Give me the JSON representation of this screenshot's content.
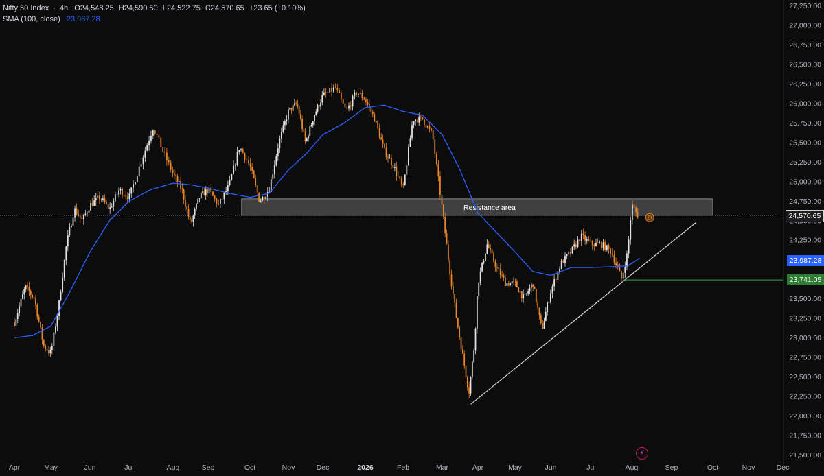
{
  "legend": {
    "symbol": "Nifty 50 Index",
    "separator": "·",
    "interval": "4h",
    "ohlc": {
      "open": "O24,548.25",
      "high": "H24,590.50",
      "low": "L24,522.75",
      "close": "C24,570.65",
      "change": "+23.65 (+0.10%)"
    },
    "sma_label": "SMA (100, close)",
    "sma_value": "23,987.28"
  },
  "colors": {
    "background": "#0c0c0c",
    "candle_up": "#e0e0e0",
    "candle_down": "#e8862a",
    "sma": "#2962ff",
    "support_line": "#3fa34d",
    "trendline": "#d9d9d9",
    "resistance_fill": "#4a4a4a"
  },
  "icons": {
    "dividend": "dividend-d-marker-icon",
    "event": "lightning-event-icon"
  },
  "chart_data": {
    "type": "line",
    "title": "",
    "x_axis_labels": [
      "Apr",
      "May",
      "Jun",
      "Jul",
      "Aug",
      "Sep",
      "Oct",
      "Nov",
      "Dec",
      "2026",
      "Feb",
      "Mar",
      "Apr",
      "May",
      "Jun",
      "Jul",
      "Aug",
      "Sep",
      "Oct",
      "Nov",
      "Dec"
    ],
    "y_axis": {
      "ticks": [
        21500,
        21750,
        22000,
        22250,
        22500,
        22750,
        23000,
        23250,
        23500,
        23750,
        24000,
        24250,
        24500,
        24750,
        25000,
        25250,
        25500,
        25750,
        26000,
        26250,
        26500,
        26750,
        27000,
        27250
      ],
      "tick_labels": [
        "21,500.00",
        "21,750.00",
        "22,000.00",
        "22,250.00",
        "22,500.00",
        "22,750.00",
        "23,000.00",
        "23,250.00",
        "23,500.00",
        "23,750.00",
        "24,000.00",
        "24,250.00",
        "24,500.00",
        "24,750.00",
        "25,000.00",
        "25,250.00",
        "25,500.00",
        "25,750.00",
        "26,000.00",
        "26,250.00",
        "26,500.00",
        "26,750.00",
        "27,000.00",
        "27,250.00"
      ],
      "range": [
        21450,
        27300
      ]
    },
    "series": [
      {
        "name": "Nifty 50 Index",
        "points": [
          [
            0.0,
            23200
          ],
          [
            0.3,
            23650
          ],
          [
            0.55,
            23500
          ],
          [
            0.8,
            22900
          ],
          [
            1.0,
            22800
          ],
          [
            1.2,
            23400
          ],
          [
            1.4,
            24200
          ],
          [
            1.6,
            24650
          ],
          [
            1.8,
            24500
          ],
          [
            2.0,
            24700
          ],
          [
            2.25,
            24800
          ],
          [
            2.5,
            24650
          ],
          [
            2.75,
            24900
          ],
          [
            3.0,
            24800
          ],
          [
            3.3,
            25300
          ],
          [
            3.55,
            25700
          ],
          [
            3.8,
            25350
          ],
          [
            4.0,
            25100
          ],
          [
            4.25,
            24900
          ],
          [
            4.5,
            24450
          ],
          [
            4.75,
            24800
          ],
          [
            5.0,
            24900
          ],
          [
            5.25,
            24700
          ],
          [
            5.5,
            24950
          ],
          [
            5.75,
            25450
          ],
          [
            6.0,
            25200
          ],
          [
            6.25,
            24750
          ],
          [
            6.5,
            24900
          ],
          [
            6.75,
            25500
          ],
          [
            7.0,
            25900
          ],
          [
            7.25,
            26000
          ],
          [
            7.5,
            25500
          ],
          [
            7.75,
            25850
          ],
          [
            8.0,
            26100
          ],
          [
            8.3,
            26200
          ],
          [
            8.55,
            25900
          ],
          [
            8.8,
            26150
          ],
          [
            9.0,
            26050
          ],
          [
            9.25,
            25800
          ],
          [
            9.5,
            25400
          ],
          [
            9.75,
            25200
          ],
          [
            10.0,
            24900
          ],
          [
            10.25,
            25800
          ],
          [
            10.5,
            25800
          ],
          [
            10.75,
            25600
          ],
          [
            11.0,
            24650
          ],
          [
            11.2,
            23900
          ],
          [
            11.4,
            23250
          ],
          [
            11.6,
            22700
          ],
          [
            11.75,
            22300
          ],
          [
            11.9,
            22900
          ],
          [
            12.0,
            23700
          ],
          [
            12.25,
            24200
          ],
          [
            12.5,
            23900
          ],
          [
            12.75,
            23700
          ],
          [
            13.0,
            23700
          ],
          [
            13.25,
            23500
          ],
          [
            13.5,
            23700
          ],
          [
            13.75,
            23100
          ],
          [
            14.0,
            23600
          ],
          [
            14.25,
            23950
          ],
          [
            14.5,
            24100
          ],
          [
            14.75,
            24300
          ],
          [
            15.0,
            24200
          ],
          [
            15.25,
            24200
          ],
          [
            15.5,
            24100
          ],
          [
            15.75,
            23750
          ],
          [
            15.9,
            24100
          ],
          [
            16.0,
            24700
          ],
          [
            16.15,
            24570
          ]
        ]
      },
      {
        "name": "SMA (100, close)",
        "points": [
          [
            0.0,
            23000
          ],
          [
            0.5,
            23030
          ],
          [
            1.0,
            23150
          ],
          [
            1.5,
            23600
          ],
          [
            2.0,
            24100
          ],
          [
            2.5,
            24500
          ],
          [
            3.0,
            24750
          ],
          [
            3.5,
            24900
          ],
          [
            4.0,
            24980
          ],
          [
            4.5,
            24960
          ],
          [
            5.0,
            24920
          ],
          [
            5.5,
            24850
          ],
          [
            6.0,
            24800
          ],
          [
            6.5,
            24850
          ],
          [
            7.0,
            25150
          ],
          [
            7.5,
            25350
          ],
          [
            8.0,
            25600
          ],
          [
            8.5,
            25750
          ],
          [
            9.0,
            25950
          ],
          [
            9.5,
            25980
          ],
          [
            10.0,
            25900
          ],
          [
            10.5,
            25850
          ],
          [
            11.0,
            25600
          ],
          [
            11.5,
            25150
          ],
          [
            12.0,
            24600
          ],
          [
            12.5,
            24350
          ],
          [
            13.0,
            24100
          ],
          [
            13.5,
            23850
          ],
          [
            14.0,
            23800
          ],
          [
            14.5,
            23900
          ],
          [
            15.0,
            23900
          ],
          [
            15.5,
            23910
          ],
          [
            15.9,
            23920
          ],
          [
            16.2,
            24020
          ]
        ]
      }
    ],
    "annotations": {
      "resistance_area": {
        "label": "Resistance area",
        "y_range": [
          24570,
          24780
        ],
        "x_range": [
          5.8,
          18.0
        ]
      },
      "trendline": {
        "from": [
          11.8,
          22150
        ],
        "to": [
          17.6,
          24480
        ]
      },
      "support_level": {
        "value": 23741.05,
        "x_from": 15.8
      },
      "last_price": {
        "value": 24570.65,
        "label": "24,570.65"
      },
      "sma_price": {
        "value": 23987.28,
        "label": "23,987.28"
      },
      "support_price": {
        "value": 23741.05,
        "label": "23,741.05"
      }
    },
    "grid": false
  }
}
